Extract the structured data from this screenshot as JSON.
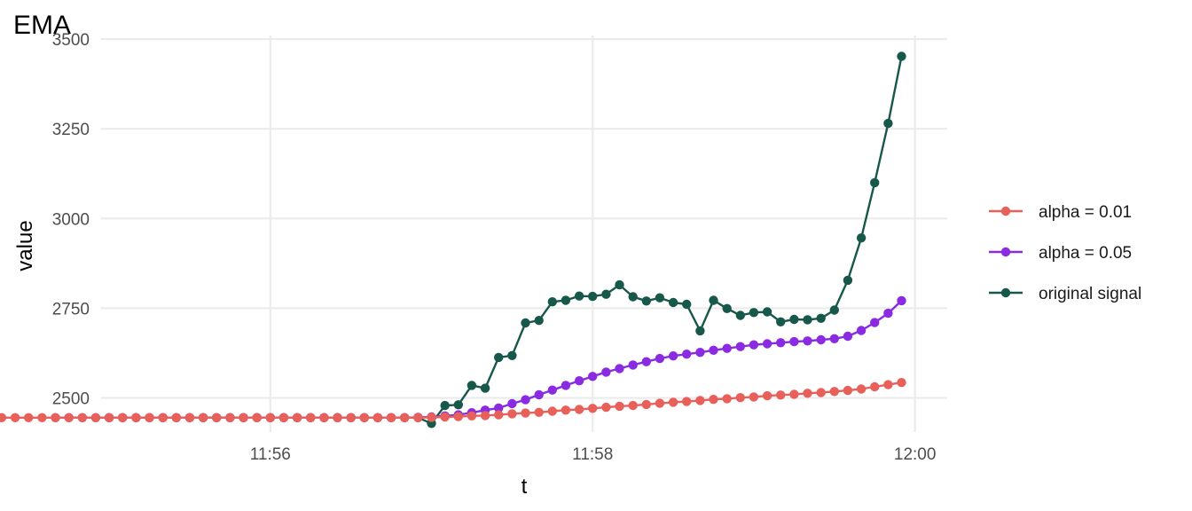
{
  "chart_data": {
    "type": "line",
    "title": "EMA",
    "xlabel": "t",
    "ylabel": "value",
    "xlim": [
      -0.05,
      5.2
    ],
    "ylim": [
      2405,
      3510
    ],
    "x_ticks": [
      {
        "value": 1,
        "label": "11:56"
      },
      {
        "value": 3,
        "label": "11:58"
      },
      {
        "value": 5,
        "label": "12:00"
      }
    ],
    "y_ticks": [
      {
        "value": 2500,
        "label": "2500"
      },
      {
        "value": 2750,
        "label": "2750"
      },
      {
        "value": 3000,
        "label": "3000"
      },
      {
        "value": 3250,
        "label": "3250"
      },
      {
        "value": 3500,
        "label": "3500"
      }
    ],
    "grid": true,
    "legend_position": "right",
    "x_step": 0.0833333,
    "x_start": 0,
    "series": [
      {
        "name": "alpha = 0.01",
        "color": "#E8605A",
        "values": [
          2445,
          2445,
          2445,
          2445,
          2445,
          2445,
          2445,
          2445,
          2445,
          2445,
          2445,
          2445,
          2445,
          2445,
          2445,
          2445,
          2445,
          2445,
          2445,
          2445,
          2445,
          2445,
          2445,
          2445,
          2445,
          2445,
          2445,
          2445,
          2445,
          2445,
          2445,
          2445,
          2445,
          2446,
          2447,
          2448,
          2450,
          2451,
          2453,
          2456,
          2458,
          2460,
          2463,
          2466,
          2468,
          2471,
          2474,
          2477,
          2479,
          2482,
          2485,
          2488,
          2490,
          2493,
          2496,
          2498,
          2501,
          2503,
          2506,
          2508,
          2510,
          2513,
          2515,
          2518,
          2521,
          2525,
          2531,
          2537,
          2543
        ]
      },
      {
        "name": "alpha = 0.05",
        "color": "#8A2BE2",
        "values": [
          2445,
          2445,
          2445,
          2445,
          2445,
          2445,
          2445,
          2445,
          2445,
          2445,
          2445,
          2445,
          2445,
          2445,
          2445,
          2445,
          2445,
          2445,
          2445,
          2445,
          2445,
          2445,
          2445,
          2445,
          2445,
          2445,
          2445,
          2446,
          2447,
          2450,
          2453,
          2459,
          2466,
          2472,
          2484,
          2495,
          2509,
          2522,
          2535,
          2548,
          2560,
          2572,
          2582,
          2592,
          2601,
          2610,
          2617,
          2622,
          2627,
          2633,
          2638,
          2643,
          2648,
          2651,
          2654,
          2657,
          2659,
          2662,
          2665,
          2672,
          2688,
          2710,
          2736,
          2771
        ]
      },
      {
        "name": "original signal",
        "color": "#17584A",
        "values": [
          2445,
          2445,
          2445,
          2445,
          2445,
          2445,
          2445,
          2445,
          2445,
          2445,
          2445,
          2445,
          2445,
          2445,
          2445,
          2445,
          2445,
          2445,
          2445,
          2445,
          2445,
          2445,
          2445,
          2445,
          2429,
          2479,
          2481,
          2535,
          2527,
          2613,
          2618,
          2709,
          2716,
          2768,
          2772,
          2784,
          2783,
          2789,
          2815,
          2782,
          2770,
          2779,
          2766,
          2761,
          2687,
          2772,
          2749,
          2730,
          2738,
          2740,
          2712,
          2719,
          2718,
          2722,
          2745,
          2828,
          2946,
          3100,
          3265,
          3452
        ]
      }
    ]
  }
}
